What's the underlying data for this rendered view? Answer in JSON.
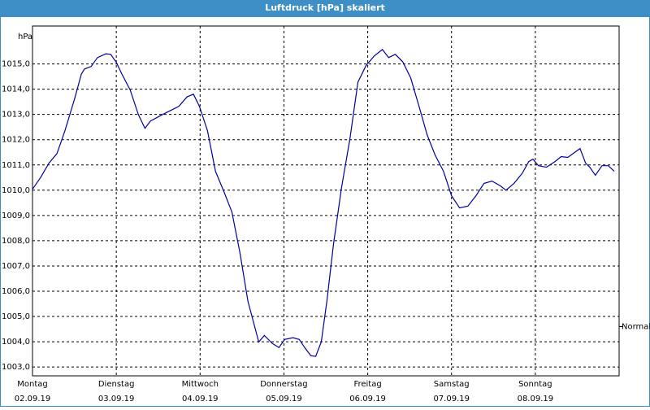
{
  "chart_data": {
    "type": "line",
    "title": "Luftdruck [hPa] skaliert",
    "ylabel": "hPa",
    "x": [
      0,
      2.3,
      4.7,
      7.0,
      9.3,
      12.1,
      14.0,
      14.9,
      16.8,
      18.6,
      21.0,
      22.4,
      24.0,
      25.6,
      28.0,
      30.3,
      32.2,
      33.8,
      37.3,
      39.6,
      41.9,
      44.3,
      46.1,
      47.8,
      50.1,
      52.4,
      54.8,
      57.1,
      59.4,
      61.7,
      64.8,
      66.4,
      68.7,
      70.6,
      72.2,
      74.6,
      76.4,
      78.1,
      79.7,
      81.1,
      82.7,
      84.3,
      86.2,
      88.5,
      90.9,
      93.2,
      95.5,
      97.9,
      100.2,
      102.0,
      103.9,
      106.0,
      108.3,
      110.7,
      113.0,
      115.3,
      117.7,
      120.0,
      122.3,
      124.7,
      127.0,
      129.3,
      131.6,
      134.0,
      135.6,
      137.9,
      140.3,
      142.1,
      143.3,
      144.9,
      147.2,
      149.6,
      151.4,
      153.3,
      154.9,
      156.8,
      158.4,
      159.6,
      161.2,
      163.1,
      164.9,
      166.6
    ],
    "series": [
      {
        "name": "Luftdruck",
        "color": "#0000a0",
        "values": [
          1010.04,
          1010.5,
          1011.07,
          1011.45,
          1012.36,
          1013.64,
          1014.6,
          1014.8,
          1014.9,
          1015.25,
          1015.4,
          1015.38,
          1015.06,
          1014.6,
          1013.96,
          1013.0,
          1012.45,
          1012.74,
          1013.0,
          1013.16,
          1013.32,
          1013.7,
          1013.8,
          1013.32,
          1012.36,
          1010.75,
          1009.95,
          1009.14,
          1007.53,
          1005.6,
          1003.99,
          1004.25,
          1003.93,
          1003.77,
          1004.09,
          1004.16,
          1004.09,
          1003.74,
          1003.45,
          1003.42,
          1003.99,
          1005.6,
          1007.86,
          1010.1,
          1012.03,
          1014.28,
          1014.93,
          1015.32,
          1015.57,
          1015.25,
          1015.38,
          1015.09,
          1014.45,
          1013.32,
          1012.2,
          1011.39,
          1010.75,
          1009.78,
          1009.3,
          1009.37,
          1009.78,
          1010.27,
          1010.36,
          1010.17,
          1010.0,
          1010.27,
          1010.68,
          1011.13,
          1011.23,
          1010.97,
          1010.91,
          1011.13,
          1011.33,
          1011.3,
          1011.46,
          1011.65,
          1011.07,
          1010.91,
          1010.59,
          1010.97,
          1010.97,
          1010.75
        ]
      }
    ],
    "xlim": [
      0,
      168
    ],
    "xticks": [
      {
        "value": 0,
        "label": "Montag",
        "date": "02.09.19"
      },
      {
        "value": 24,
        "label": "Dienstag",
        "date": "03.09.19"
      },
      {
        "value": 48,
        "label": "Mittwoch",
        "date": "04.09.19"
      },
      {
        "value": 72,
        "label": "Donnerstag",
        "date": "05.09.19"
      },
      {
        "value": 96,
        "label": "Freitag",
        "date": "06.09.19"
      },
      {
        "value": 120,
        "label": "Samstag",
        "date": "07.09.19"
      },
      {
        "value": 144,
        "label": "Sonntag",
        "date": "08.09.19"
      }
    ],
    "ylim": [
      1002.65,
      1016.5
    ],
    "yticks": [
      {
        "value": 1003,
        "label": "1003,0"
      },
      {
        "value": 1004,
        "label": "1004,0"
      },
      {
        "value": 1005,
        "label": "1005,0"
      },
      {
        "value": 1006,
        "label": "1006,0"
      },
      {
        "value": 1007,
        "label": "1007,0"
      },
      {
        "value": 1008,
        "label": "1008,0"
      },
      {
        "value": 1009,
        "label": "1009,0"
      },
      {
        "value": 1010,
        "label": "1010,0"
      },
      {
        "value": 1011,
        "label": "1011,0"
      },
      {
        "value": 1012,
        "label": "1012,0"
      },
      {
        "value": 1013,
        "label": "1013,0"
      },
      {
        "value": 1014,
        "label": "1014,0"
      },
      {
        "value": 1015,
        "label": "1015,0"
      }
    ],
    "reference": {
      "value": 1004.6,
      "label": "Normal"
    },
    "grid": true
  }
}
